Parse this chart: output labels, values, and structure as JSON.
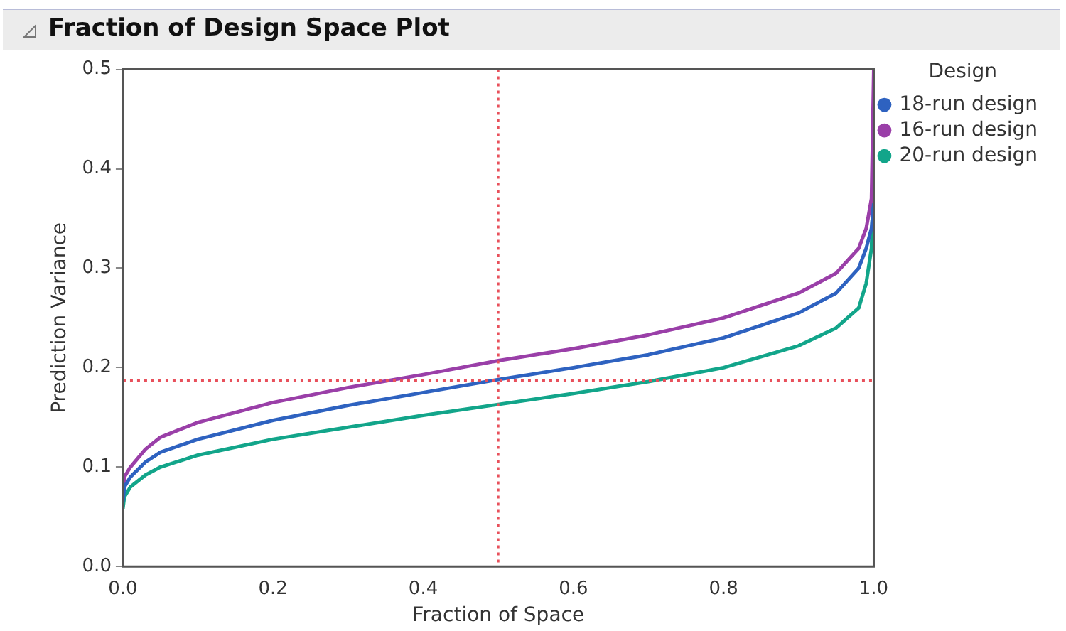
{
  "chart_data": {
    "type": "line",
    "title": "Fraction of Design Space Plot",
    "xlabel": "Fraction of Space",
    "ylabel": "Prediction Variance",
    "legend_title": "Design",
    "legend": "right",
    "grid": false,
    "marker": "none",
    "line_style": "solid",
    "x": [
      0,
      0.002,
      0.01,
      0.03,
      0.05,
      0.1,
      0.2,
      0.3,
      0.4,
      0.5,
      0.6,
      0.7,
      0.8,
      0.9,
      0.95,
      0.98,
      0.99,
      0.997,
      1
    ],
    "xlim": [
      0,
      1
    ],
    "xticks": [
      {
        "value": 0,
        "label": "0.0"
      },
      0.2,
      0.4,
      0.6,
      0.8,
      {
        "value": 1,
        "label": "1.0"
      }
    ],
    "ylim": [
      0,
      0.5
    ],
    "yticks": [
      {
        "value": 0,
        "label": "0.0"
      },
      0.1,
      0.2,
      0.3,
      0.4,
      0.5
    ],
    "series": [
      {
        "name": "18-run design",
        "color": "#2e62c0",
        "values": [
          0.065,
          0.08,
          0.09,
          0.105,
          0.115,
          0.128,
          0.147,
          0.162,
          0.175,
          0.188,
          0.2,
          0.213,
          0.23,
          0.255,
          0.275,
          0.3,
          0.32,
          0.34,
          0.365
        ]
      },
      {
        "name": "16-run design",
        "color": "#9a3fa8",
        "values": [
          0.075,
          0.09,
          0.1,
          0.118,
          0.13,
          0.145,
          0.165,
          0.18,
          0.193,
          0.207,
          0.219,
          0.233,
          0.25,
          0.275,
          0.295,
          0.32,
          0.34,
          0.37,
          0.5
        ]
      },
      {
        "name": "20-run design",
        "color": "#12a58a",
        "values": [
          0.058,
          0.07,
          0.08,
          0.092,
          0.1,
          0.112,
          0.128,
          0.14,
          0.152,
          0.163,
          0.174,
          0.186,
          0.2,
          0.222,
          0.24,
          0.26,
          0.285,
          0.32,
          0.4
        ]
      }
    ],
    "ref_lines": [
      {
        "axis": "x",
        "value": 0.5,
        "color": "#e8505b",
        "line_style": "dotted"
      },
      {
        "axis": "y",
        "value": 0.187,
        "color": "#e8505b",
        "line_style": "dotted"
      }
    ]
  }
}
